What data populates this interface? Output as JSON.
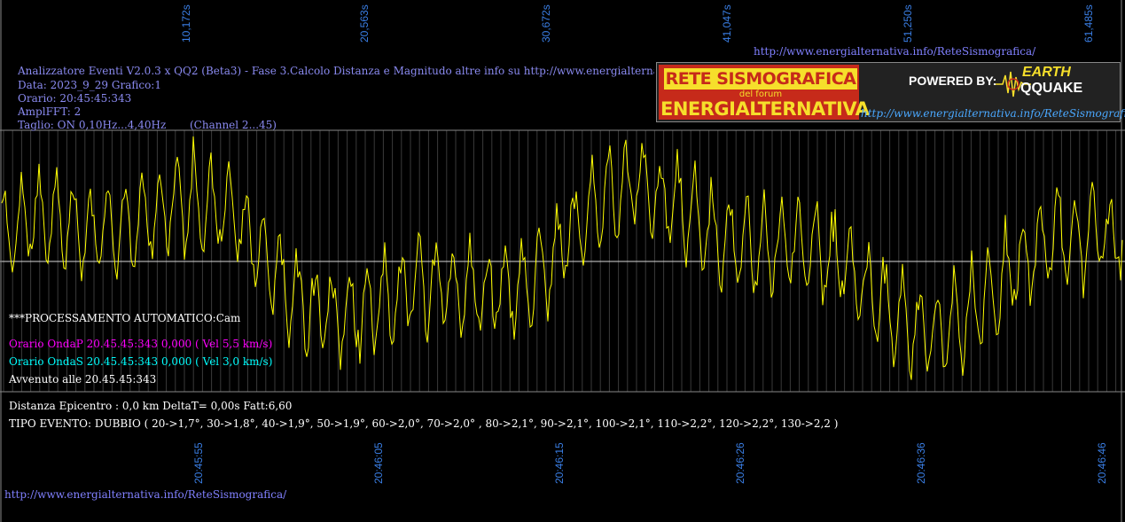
{
  "top_time_labels": [
    "10,172s",
    "20,563s",
    "30,672s",
    "41,047s",
    "51,250s",
    "61,485s"
  ],
  "bottom_time_labels": [
    "20:45:55",
    "20:46:05",
    "20:46:15",
    "20:46:26",
    "20:46:36",
    "20:46:46"
  ],
  "site_url_top": "http://www.energialternativa.info/ReteSismografica/",
  "header": {
    "line1": "Analizzatore Eventi V2.0.3 x QQ2 (Beta3) - Fase 3.Calcolo Distanza e Magnitudo altre info su http://www.energialternativa.info/ReteSism",
    "line2": "Data: 2023_9_29 Grafico:1",
    "line3": "Orario: 20:45:45:343",
    "line4": "AmplFFT: 2",
    "line5": "Taglio: ON 0,10Hz...4,40Hz       (Channel 2...45)"
  },
  "logo": {
    "title": "RETE SISMOGRAFICA",
    "subtitle": "del forum",
    "brand": "ENERGIALTERNATIVA",
    "powered": "POWERED BY:",
    "eq_top": "EARTH",
    "eq_bottom": "QQUAKE",
    "url": "http://www.energialternativa.info/ReteSismografica"
  },
  "processing": {
    "status": "***PROCESSAMENTO AUTOMATICO:Cam",
    "onda_p": "Orario OndaP 20.45.45:343  0,000 ( Vel 5,5 km/s)",
    "onda_s": "Orario OndaS 20.45.45:343  0,000 ( Vel 3,0 km/s)",
    "avvenuto": "Avvenuto alle 20.45.45:343",
    "distanza": "Distanza Epicentro : 0,0 km DeltaT= 0,00s  Fatt:6,60",
    "tipo": "TIPO EVENTO: DUBBIO ( 20->1,7°, 30->1,8°, 40->1,9°, 50->1,9°, 60->2,0°, 70->2,0° , 80->2,1°, 90->2,1°, 100->2,1°, 110->2,2°, 120->2,2°, 130->2,2 )"
  },
  "footer_url": "http://www.energialternativa.info/ReteSismografica/",
  "colors": {
    "background": "#000000",
    "trace": "#ffff00",
    "onda_p": "#ff00ff",
    "onda_s": "#00ffff",
    "time_labels": "#3a7fe6",
    "grid": "#555555"
  }
}
